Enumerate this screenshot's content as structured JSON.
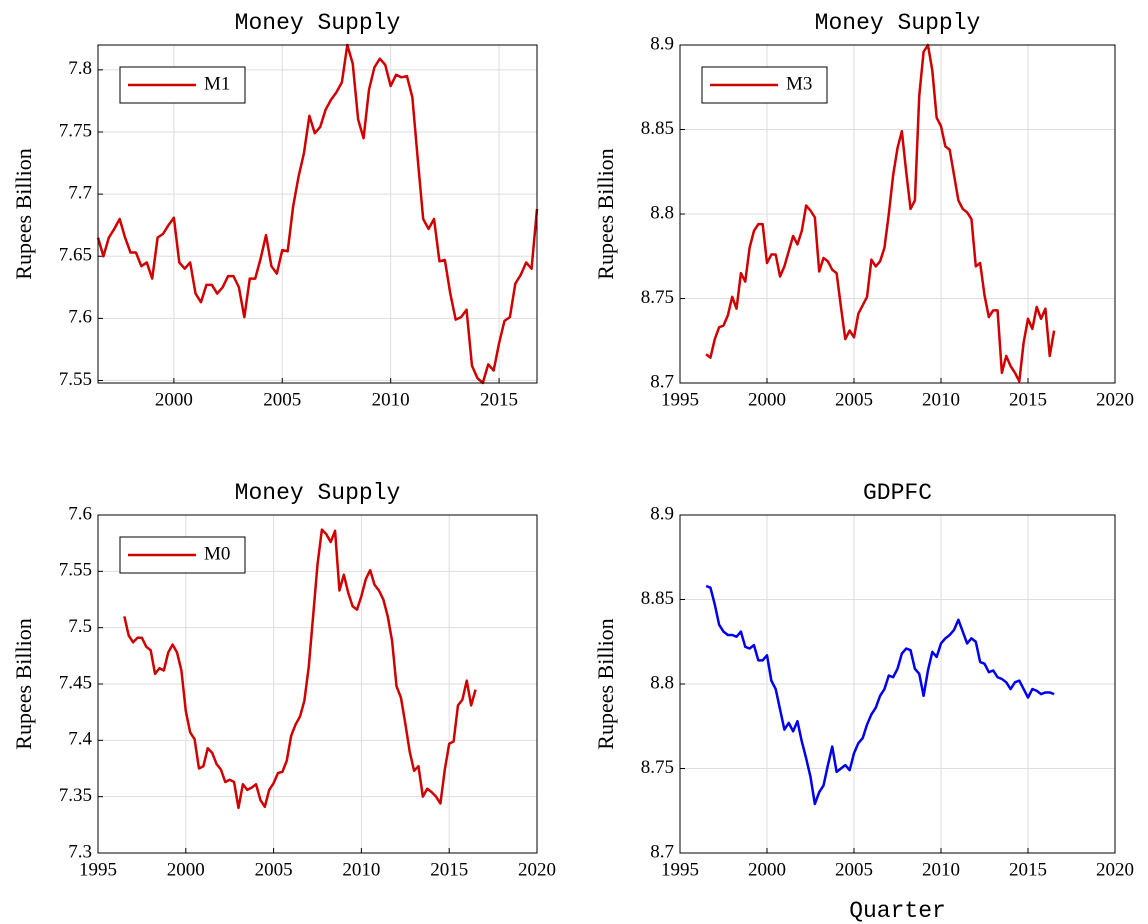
{
  "chart_data": [
    {
      "type": "line",
      "title": "Money Supply",
      "ylabel": "Rupees Billion",
      "x": [
        1996.5,
        1996.75,
        1997,
        1997.25,
        1997.5,
        1997.75,
        1998,
        1998.25,
        1998.5,
        1998.75,
        1999,
        1999.25,
        1999.5,
        1999.75,
        2000,
        2000.25,
        2000.5,
        2000.75,
        2001,
        2001.25,
        2001.5,
        2001.75,
        2002,
        2002.25,
        2002.5,
        2002.75,
        2003,
        2003.25,
        2003.5,
        2003.75,
        2004,
        2004.25,
        2004.5,
        2004.75,
        2005,
        2005.25,
        2005.5,
        2005.75,
        2006,
        2006.25,
        2006.5,
        2006.75,
        2007,
        2007.25,
        2007.5,
        2007.75,
        2008,
        2008.25,
        2008.5,
        2008.75,
        2009,
        2009.25,
        2009.5,
        2009.75,
        2010,
        2010.25,
        2010.5,
        2010.75,
        2011,
        2011.25,
        2011.5,
        2011.75,
        2012,
        2012.25,
        2012.5,
        2012.75,
        2013,
        2013.25,
        2013.5,
        2013.75,
        2014,
        2014.25,
        2014.5,
        2014.75,
        2015,
        2015.25,
        2015.5,
        2015.75,
        2016,
        2016.25,
        2016.5,
        2016.75
      ],
      "series": [
        {
          "name": "M1",
          "color": "#d00000",
          "values": [
            7.665,
            7.65,
            7.665,
            7.672,
            7.68,
            7.665,
            7.653,
            7.653,
            7.642,
            7.645,
            7.632,
            7.665,
            7.668,
            7.675,
            7.681,
            7.645,
            7.64,
            7.645,
            7.62,
            7.613,
            7.627,
            7.627,
            7.62,
            7.625,
            7.634,
            7.634,
            7.625,
            7.601,
            7.632,
            7.632,
            7.648,
            7.667,
            7.642,
            7.636,
            7.655,
            7.654,
            7.69,
            7.714,
            7.733,
            7.763,
            7.749,
            7.754,
            7.768,
            7.776,
            7.782,
            7.79,
            7.82,
            7.805,
            7.76,
            7.745,
            7.784,
            7.802,
            7.809,
            7.804,
            7.787,
            7.796,
            7.794,
            7.795,
            7.778,
            7.728,
            7.68,
            7.672,
            7.68,
            7.646,
            7.647,
            7.62,
            7.599,
            7.601,
            7.607,
            7.562,
            7.552,
            7.548,
            7.563,
            7.558,
            7.58,
            7.598,
            7.601,
            7.628,
            7.635,
            7.645,
            7.64,
            7.688
          ]
        }
      ],
      "xlim": [
        1996.5,
        2016.75
      ],
      "xticks": [
        2000,
        2005,
        2010,
        2015
      ],
      "ylim": [
        7.548,
        7.82
      ],
      "yticks": [
        7.55,
        7.6,
        7.65,
        7.7,
        7.75,
        7.8
      ],
      "grid": true,
      "legend": "upper left"
    },
    {
      "type": "line",
      "title": "Money Supply",
      "ylabel": "Rupees Billion",
      "x": [
        1996.5,
        1996.75,
        1997,
        1997.25,
        1997.5,
        1997.75,
        1998,
        1998.25,
        1998.5,
        1998.75,
        1999,
        1999.25,
        1999.5,
        1999.75,
        2000,
        2000.25,
        2000.5,
        2000.75,
        2001,
        2001.25,
        2001.5,
        2001.75,
        2002,
        2002.25,
        2002.5,
        2002.75,
        2003,
        2003.25,
        2003.5,
        2003.75,
        2004,
        2004.25,
        2004.5,
        2004.75,
        2005,
        2005.25,
        2005.5,
        2005.75,
        2006,
        2006.25,
        2006.5,
        2006.75,
        2007,
        2007.25,
        2007.5,
        2007.75,
        2008,
        2008.25,
        2008.5,
        2008.75,
        2009,
        2009.25,
        2009.5,
        2009.75,
        2010,
        2010.25,
        2010.5,
        2010.75,
        2011,
        2011.25,
        2011.5,
        2011.75,
        2012,
        2012.25,
        2012.5,
        2012.75,
        2013,
        2013.25,
        2013.5,
        2013.75,
        2014,
        2014.25,
        2014.5,
        2014.75,
        2015,
        2015.25,
        2015.5,
        2015.75,
        2016,
        2016.25,
        2016.5
      ],
      "series": [
        {
          "name": "M3",
          "color": "#d00000",
          "values": [
            8.717,
            8.715,
            8.726,
            8.733,
            8.734,
            8.74,
            8.751,
            8.744,
            8.765,
            8.76,
            8.78,
            8.79,
            8.794,
            8.794,
            8.771,
            8.776,
            8.776,
            8.763,
            8.769,
            8.778,
            8.787,
            8.782,
            8.79,
            8.805,
            8.802,
            8.798,
            8.766,
            8.774,
            8.772,
            8.767,
            8.765,
            8.745,
            8.726,
            8.731,
            8.727,
            8.741,
            8.746,
            8.751,
            8.773,
            8.769,
            8.772,
            8.78,
            8.8,
            8.823,
            8.839,
            8.849,
            8.825,
            8.803,
            8.808,
            8.87,
            8.896,
            8.9,
            8.885,
            8.857,
            8.852,
            8.84,
            8.838,
            8.823,
            8.808,
            8.803,
            8.801,
            8.797,
            8.769,
            8.771,
            8.752,
            8.739,
            8.743,
            8.743,
            8.706,
            8.716,
            8.71,
            8.706,
            8.701,
            8.724,
            8.738,
            8.732,
            8.745,
            8.738,
            8.744,
            8.716,
            8.731
          ]
        }
      ],
      "xlim": [
        1995,
        2020
      ],
      "xticks": [
        1995,
        2000,
        2005,
        2010,
        2015,
        2020
      ],
      "ylim": [
        8.7,
        8.9
      ],
      "yticks": [
        8.7,
        8.75,
        8.8,
        8.85,
        8.9
      ],
      "grid": true,
      "legend": "upper left"
    },
    {
      "type": "line",
      "title": "Money Supply",
      "ylabel": "Rupees Billion",
      "x": [
        1996.5,
        1996.75,
        1997,
        1997.25,
        1997.5,
        1997.75,
        1998,
        1998.25,
        1998.5,
        1998.75,
        1999,
        1999.25,
        1999.5,
        1999.75,
        2000,
        2000.25,
        2000.5,
        2000.75,
        2001,
        2001.25,
        2001.5,
        2001.75,
        2002,
        2002.25,
        2002.5,
        2002.75,
        2003,
        2003.25,
        2003.5,
        2003.75,
        2004,
        2004.25,
        2004.5,
        2004.75,
        2005,
        2005.25,
        2005.5,
        2005.75,
        2006,
        2006.25,
        2006.5,
        2006.75,
        2007,
        2007.25,
        2007.5,
        2007.75,
        2008,
        2008.25,
        2008.5,
        2008.75,
        2009,
        2009.25,
        2009.5,
        2009.75,
        2010,
        2010.25,
        2010.5,
        2010.75,
        2011,
        2011.25,
        2011.5,
        2011.75,
        2012,
        2012.25,
        2012.5,
        2012.75,
        2013,
        2013.25,
        2013.5,
        2013.75,
        2014,
        2014.25,
        2014.5,
        2014.75,
        2015,
        2015.25,
        2015.5,
        2015.75,
        2016,
        2016.25,
        2016.5
      ],
      "series": [
        {
          "name": "M0",
          "color": "#d00000",
          "values": [
            7.51,
            7.493,
            7.487,
            7.491,
            7.491,
            7.483,
            7.48,
            7.459,
            7.464,
            7.462,
            7.478,
            7.485,
            7.478,
            7.462,
            7.426,
            7.407,
            7.401,
            7.375,
            7.377,
            7.393,
            7.389,
            7.379,
            7.374,
            7.363,
            7.365,
            7.363,
            7.34,
            7.361,
            7.356,
            7.358,
            7.361,
            7.347,
            7.341,
            7.356,
            7.362,
            7.371,
            7.372,
            7.382,
            7.404,
            7.414,
            7.421,
            7.435,
            7.465,
            7.51,
            7.556,
            7.587,
            7.583,
            7.576,
            7.586,
            7.533,
            7.547,
            7.531,
            7.519,
            7.516,
            7.528,
            7.543,
            7.551,
            7.538,
            7.533,
            7.525,
            7.51,
            7.488,
            7.448,
            7.438,
            7.415,
            7.39,
            7.373,
            7.377,
            7.35,
            7.357,
            7.354,
            7.35,
            7.344,
            7.374,
            7.397,
            7.399,
            7.431,
            7.436,
            7.453,
            7.431,
            7.445
          ]
        }
      ],
      "xlim": [
        1995,
        2020
      ],
      "xticks": [
        1995,
        2000,
        2005,
        2010,
        2015,
        2020
      ],
      "ylim": [
        7.3,
        7.6
      ],
      "yticks": [
        7.3,
        7.35,
        7.4,
        7.45,
        7.5,
        7.55,
        7.6
      ],
      "grid": true,
      "legend": "upper left"
    },
    {
      "type": "line",
      "title": "GDPFC",
      "ylabel": "Rupees Billion",
      "xlabel": "Quarter",
      "x": [
        1996.5,
        1996.75,
        1997,
        1997.25,
        1997.5,
        1997.75,
        1998,
        1998.25,
        1998.5,
        1998.75,
        1999,
        1999.25,
        1999.5,
        1999.75,
        2000,
        2000.25,
        2000.5,
        2000.75,
        2001,
        2001.25,
        2001.5,
        2001.75,
        2002,
        2002.25,
        2002.5,
        2002.75,
        2003,
        2003.25,
        2003.5,
        2003.75,
        2004,
        2004.25,
        2004.5,
        2004.75,
        2005,
        2005.25,
        2005.5,
        2005.75,
        2006,
        2006.25,
        2006.5,
        2006.75,
        2007,
        2007.25,
        2007.5,
        2007.75,
        2008,
        2008.25,
        2008.5,
        2008.75,
        2009,
        2009.25,
        2009.5,
        2009.75,
        2010,
        2010.25,
        2010.5,
        2010.75,
        2011,
        2011.25,
        2011.5,
        2011.75,
        2012,
        2012.25,
        2012.5,
        2012.75,
        2013,
        2013.25,
        2013.5,
        2013.75,
        2014,
        2014.25,
        2014.5,
        2014.75,
        2015,
        2015.25,
        2015.5,
        2015.75,
        2016,
        2016.25,
        2016.5
      ],
      "series": [
        {
          "color": "#0000ee",
          "values": [
            8.858,
            8.857,
            8.847,
            8.835,
            8.831,
            8.829,
            8.829,
            8.828,
            8.831,
            8.822,
            8.821,
            8.823,
            8.814,
            8.814,
            8.817,
            8.802,
            8.797,
            8.785,
            8.773,
            8.777,
            8.772,
            8.778,
            8.766,
            8.756,
            8.745,
            8.729,
            8.736,
            8.74,
            8.752,
            8.763,
            8.748,
            8.75,
            8.752,
            8.749,
            8.759,
            8.765,
            8.768,
            8.776,
            8.782,
            8.786,
            8.793,
            8.797,
            8.805,
            8.804,
            8.809,
            8.818,
            8.821,
            8.82,
            8.809,
            8.806,
            8.793,
            8.808,
            8.819,
            8.816,
            8.824,
            8.827,
            8.829,
            8.832,
            8.838,
            8.831,
            8.824,
            8.827,
            8.825,
            8.813,
            8.812,
            8.807,
            8.808,
            8.804,
            8.803,
            8.801,
            8.797,
            8.801,
            8.802,
            8.797,
            8.792,
            8.797,
            8.796,
            8.794,
            8.795,
            8.795,
            8.794
          ]
        }
      ],
      "xlim": [
        1995,
        2020
      ],
      "xticks": [
        1995,
        2000,
        2005,
        2010,
        2015,
        2020
      ],
      "ylim": [
        8.7,
        8.9
      ],
      "yticks": [
        8.7,
        8.75,
        8.8,
        8.85,
        8.9
      ],
      "grid": true
    }
  ]
}
